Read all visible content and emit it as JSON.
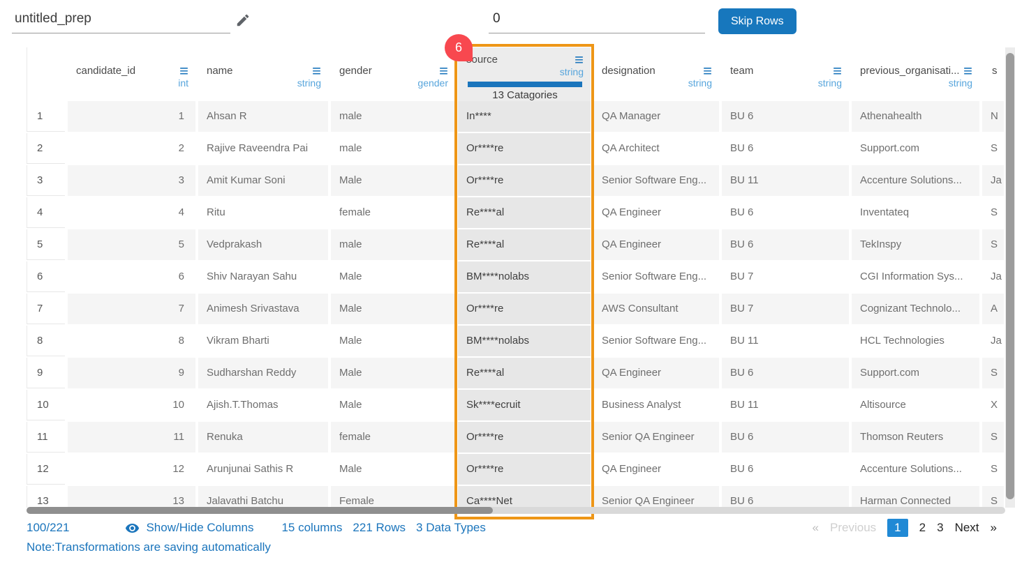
{
  "header": {
    "prep_name_value": "untitled_prep",
    "skip_rows_value": "0",
    "skip_rows_button": "Skip Rows"
  },
  "badge": {
    "value": "6"
  },
  "colors": {
    "accent_blue": "#1b75bc",
    "type_label_blue": "#57a5dc",
    "button_blue": "#1777bd",
    "active_page_blue": "#2089d5",
    "selection_orange": "#ee9617",
    "badge_red": "#f8484f",
    "row_alt_gray": "#f5f5f5",
    "selected_column_gray": "#e7e7e7"
  },
  "table": {
    "columns": [
      {
        "name": "candidate_id",
        "type": "int"
      },
      {
        "name": "name",
        "type": "string"
      },
      {
        "name": "gender",
        "type": "gender"
      },
      {
        "name": "source",
        "type": "string",
        "selected": true,
        "categories_label": "13 Catagories"
      },
      {
        "name": "designation",
        "type": "string"
      },
      {
        "name": "team",
        "type": "string"
      },
      {
        "name": "previous_organisati...",
        "type": "string"
      },
      {
        "name": "s",
        "type": ""
      }
    ],
    "rows": [
      {
        "num": "1",
        "candidate_id": "1",
        "name": "Ahsan R",
        "gender": "male",
        "source": "In****",
        "designation": "QA Manager",
        "team": "BU 6",
        "previous_organisation": "Athenahealth",
        "next_col": "N"
      },
      {
        "num": "2",
        "candidate_id": "2",
        "name": "Rajive Raveendra Pai",
        "gender": "male",
        "source": "Or****re",
        "designation": "QA Architect",
        "team": "BU 6",
        "previous_organisation": "Support.com",
        "next_col": "S"
      },
      {
        "num": "3",
        "candidate_id": "3",
        "name": "Amit Kumar Soni",
        "gender": "Male",
        "source": "Or****re",
        "designation": "Senior Software Eng...",
        "team": "BU 11",
        "previous_organisation": "Accenture Solutions...",
        "next_col": "Ja"
      },
      {
        "num": "4",
        "candidate_id": "4",
        "name": "Ritu",
        "gender": "female",
        "source": "Re****al",
        "designation": "QA Engineer",
        "team": "BU 6",
        "previous_organisation": "Inventateq",
        "next_col": "S"
      },
      {
        "num": "5",
        "candidate_id": "5",
        "name": "Vedprakash",
        "gender": "male",
        "source": "Re****al",
        "designation": "QA Engineer",
        "team": "BU 6",
        "previous_organisation": "TekInspy",
        "next_col": "S"
      },
      {
        "num": "6",
        "candidate_id": "6",
        "name": "Shiv Narayan Sahu",
        "gender": "Male",
        "source": "BM****nolabs",
        "designation": "Senior Software Eng...",
        "team": "BU 7",
        "previous_organisation": "CGI Information Sys...",
        "next_col": "Ja"
      },
      {
        "num": "7",
        "candidate_id": "7",
        "name": "Animesh Srivastava",
        "gender": "Male",
        "source": "Or****re",
        "designation": "AWS Consultant",
        "team": "BU 7",
        "previous_organisation": "Cognizant Technolo...",
        "next_col": "A"
      },
      {
        "num": "8",
        "candidate_id": "8",
        "name": "Vikram Bharti",
        "gender": "Male",
        "source": "BM****nolabs",
        "designation": "Senior Software Eng...",
        "team": "BU 11",
        "previous_organisation": "HCL Technologies",
        "next_col": "Ja"
      },
      {
        "num": "9",
        "candidate_id": "9",
        "name": "Sudharshan Reddy",
        "gender": "Male",
        "source": "Re****al",
        "designation": "QA Engineer",
        "team": "BU 6",
        "previous_organisation": "Support.com",
        "next_col": "S"
      },
      {
        "num": "10",
        "candidate_id": "10",
        "name": "Ajish.T.Thomas",
        "gender": "Male",
        "source": "Sk****ecruit",
        "designation": "Business Analyst",
        "team": "BU 11",
        "previous_organisation": "Altisource",
        "next_col": "X"
      },
      {
        "num": "11",
        "candidate_id": "11",
        "name": "Renuka",
        "gender": "female",
        "source": "Or****re",
        "designation": "Senior QA Engineer",
        "team": "BU 6",
        "previous_organisation": "Thomson Reuters",
        "next_col": "S"
      },
      {
        "num": "12",
        "candidate_id": "12",
        "name": "Arunjunai Sathis R",
        "gender": "Male",
        "source": "Or****re",
        "designation": "QA Engineer",
        "team": "BU 6",
        "previous_organisation": "Accenture Solutions...",
        "next_col": "S"
      },
      {
        "num": "13",
        "candidate_id": "13",
        "name": "Jalavathi Batchu",
        "gender": "Female",
        "source": "Ca****Net",
        "designation": "Senior QA Engineer",
        "team": "BU 6",
        "previous_organisation": "Harman Connected",
        "next_col": "S"
      }
    ]
  },
  "footer": {
    "page_fraction": "100/221",
    "show_hide_label": "Show/Hide Columns",
    "columns_count": "15 columns",
    "rows_count": "221 Rows",
    "data_types": "3 Data Types",
    "pagination": {
      "prev_symbol": "«",
      "previous_label": "Previous",
      "pages": [
        "1",
        "2",
        "3"
      ],
      "active_page": "1",
      "next_label": "Next",
      "next_symbol": "»"
    },
    "note": "Note:Transformations are saving automatically"
  }
}
